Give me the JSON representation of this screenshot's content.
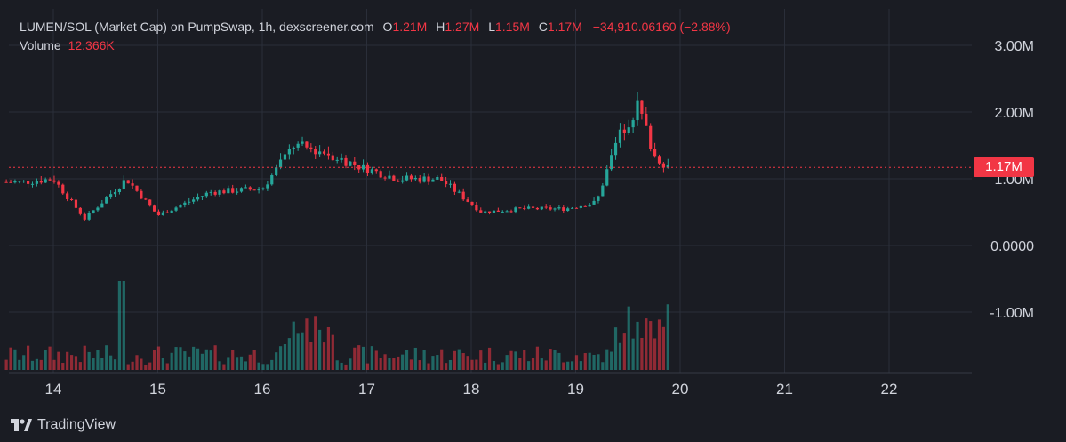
{
  "header": {
    "title": "LUMEN/SOL (Market Cap) on PumpSwap, 1h, dexscreener.com",
    "o_label": "O",
    "o_value": "1.21M",
    "h_label": "H",
    "h_value": "1.27M",
    "l_label": "L",
    "l_value": "1.15M",
    "c_label": "C",
    "c_value": "1.17M",
    "change": "−34,910.06160 (−2.88%)",
    "volume_label": "Volume",
    "volume_value": "12.366K"
  },
  "last_price_tag": "1.17M",
  "footer": {
    "brand": "TradingView",
    "logo_icon": "tradingview-logo-icon"
  },
  "colors": {
    "up": "#26a69a",
    "down": "#f23645",
    "background": "#1a1c23",
    "grid": "#2a2e39",
    "text": "#d1d4dc"
  },
  "chart_data": {
    "type": "candlestick",
    "title": "LUMEN/SOL (Market Cap) on PumpSwap, 1h, dexscreener.com",
    "interval": "1h",
    "x_ticks": [
      "14",
      "15",
      "16",
      "17",
      "18",
      "19",
      "20",
      "21",
      "22"
    ],
    "y_ticks": [
      "3.00M",
      "2.00M",
      "1.00M",
      "0.0000",
      "-1.00M"
    ],
    "ylim": [
      -1700000,
      3300000
    ],
    "grid": true,
    "last_price": 1170000,
    "ohlc_sample": [
      {
        "day": 13.7,
        "open": 800000,
        "high": 1100000,
        "low": 700000,
        "close": 950000
      },
      {
        "day": 14.0,
        "open": 1050000,
        "high": 1200000,
        "low": 850000,
        "close": 1000000
      },
      {
        "day": 14.3,
        "open": 500000,
        "high": 600000,
        "low": 300000,
        "close": 400000
      },
      {
        "day": 14.7,
        "open": 500000,
        "high": 1100000,
        "low": 400000,
        "close": 1000000
      },
      {
        "day": 15.0,
        "open": 500000,
        "high": 600000,
        "low": 350000,
        "close": 450000
      },
      {
        "day": 15.5,
        "open": 700000,
        "high": 850000,
        "low": 550000,
        "close": 800000
      },
      {
        "day": 16.0,
        "open": 600000,
        "high": 900000,
        "low": 500000,
        "close": 850000
      },
      {
        "day": 16.3,
        "open": 1300000,
        "high": 1700000,
        "low": 1000000,
        "close": 1500000
      },
      {
        "day": 16.6,
        "open": 1700000,
        "high": 1950000,
        "low": 1100000,
        "close": 1400000
      },
      {
        "day": 16.9,
        "open": 1300000,
        "high": 1600000,
        "low": 900000,
        "close": 1200000
      },
      {
        "day": 17.3,
        "open": 900000,
        "high": 1100000,
        "low": 800000,
        "close": 1000000
      },
      {
        "day": 17.7,
        "open": 1400000,
        "high": 1450000,
        "low": 950000,
        "close": 1000000
      },
      {
        "day": 18.1,
        "open": 700000,
        "high": 850000,
        "low": 450000,
        "close": 500000
      },
      {
        "day": 18.5,
        "open": 600000,
        "high": 700000,
        "low": 500000,
        "close": 550000
      },
      {
        "day": 18.9,
        "open": 500000,
        "high": 700000,
        "low": 400000,
        "close": 550000
      },
      {
        "day": 19.2,
        "open": 600000,
        "high": 700000,
        "low": 450000,
        "close": 650000
      },
      {
        "day": 19.4,
        "open": 1000000,
        "high": 1700000,
        "low": 700000,
        "close": 1600000
      },
      {
        "day": 19.6,
        "open": 1700000,
        "high": 2600000,
        "low": 1500000,
        "close": 2100000
      },
      {
        "day": 19.75,
        "open": 1600000,
        "high": 1900000,
        "low": 1300000,
        "close": 1350000
      },
      {
        "day": 19.9,
        "open": 1210000,
        "high": 1270000,
        "low": 1150000,
        "close": 1170000
      }
    ],
    "volume_label": "Volume",
    "volume_last": "12.366K"
  }
}
